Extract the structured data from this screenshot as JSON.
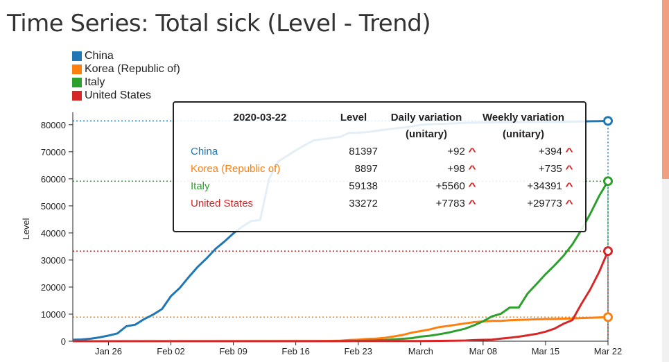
{
  "page": {
    "title": "Time Series: Total sick (Level - Trend)"
  },
  "chart_data": {
    "type": "line",
    "title": "Time Series: Total sick (Level - Trend)",
    "xlabel": "",
    "ylabel": "Level",
    "ylim": [
      0,
      82000
    ],
    "xlim": [
      "2020-01-22",
      "2020-03-22"
    ],
    "y_ticks": [
      0,
      10000,
      20000,
      30000,
      40000,
      50000,
      60000,
      70000,
      80000
    ],
    "x_ticks": [
      {
        "date": "2020-01-26",
        "label": "Jan 26"
      },
      {
        "date": "2020-02-02",
        "label": "Feb 02"
      },
      {
        "date": "2020-02-09",
        "label": "Feb 09"
      },
      {
        "date": "2020-02-16",
        "label": "Feb 16"
      },
      {
        "date": "2020-02-23",
        "label": "Feb 23"
      },
      {
        "date": "2020-03-01",
        "label": "March"
      },
      {
        "date": "2020-03-08",
        "label": "Mar 08"
      },
      {
        "date": "2020-03-15",
        "label": "Mar 15"
      },
      {
        "date": "2020-03-22",
        "label": "Mar 22"
      }
    ],
    "grid": false,
    "legend_position": "top-left",
    "series": [
      {
        "name": "China",
        "color": "#1f77b4",
        "points": [
          [
            "2020-01-22",
            548
          ],
          [
            "2020-01-23",
            643
          ],
          [
            "2020-01-24",
            920
          ],
          [
            "2020-01-25",
            1406
          ],
          [
            "2020-01-26",
            2075
          ],
          [
            "2020-01-27",
            2877
          ],
          [
            "2020-01-28",
            5509
          ],
          [
            "2020-01-29",
            6087
          ],
          [
            "2020-01-30",
            8141
          ],
          [
            "2020-01-31",
            9802
          ],
          [
            "2020-02-01",
            11891
          ],
          [
            "2020-02-02",
            16630
          ],
          [
            "2020-02-03",
            19716
          ],
          [
            "2020-02-04",
            23707
          ],
          [
            "2020-02-05",
            27440
          ],
          [
            "2020-02-06",
            30587
          ],
          [
            "2020-02-07",
            34110
          ],
          [
            "2020-02-08",
            36814
          ],
          [
            "2020-02-09",
            39829
          ],
          [
            "2020-02-10",
            42354
          ],
          [
            "2020-02-11",
            44386
          ],
          [
            "2020-02-12",
            44759
          ],
          [
            "2020-02-13",
            59895
          ],
          [
            "2020-02-14",
            66358
          ],
          [
            "2020-02-15",
            68413
          ],
          [
            "2020-02-16",
            70513
          ],
          [
            "2020-02-17",
            72434
          ],
          [
            "2020-02-18",
            74211
          ],
          [
            "2020-02-19",
            74619
          ],
          [
            "2020-02-20",
            75077
          ],
          [
            "2020-02-21",
            75550
          ],
          [
            "2020-02-22",
            77001
          ],
          [
            "2020-02-23",
            77022
          ],
          [
            "2020-02-24",
            77241
          ],
          [
            "2020-02-25",
            77754
          ],
          [
            "2020-02-26",
            78166
          ],
          [
            "2020-02-27",
            78600
          ],
          [
            "2020-02-28",
            78928
          ],
          [
            "2020-02-29",
            79356
          ],
          [
            "2020-03-01",
            79932
          ],
          [
            "2020-03-02",
            80136
          ],
          [
            "2020-03-03",
            80261
          ],
          [
            "2020-03-04",
            80386
          ],
          [
            "2020-03-05",
            80537
          ],
          [
            "2020-03-06",
            80690
          ],
          [
            "2020-03-07",
            80770
          ],
          [
            "2020-03-08",
            80823
          ],
          [
            "2020-03-09",
            80860
          ],
          [
            "2020-03-10",
            80887
          ],
          [
            "2020-03-11",
            80921
          ],
          [
            "2020-03-12",
            80932
          ],
          [
            "2020-03-13",
            80945
          ],
          [
            "2020-03-14",
            80977
          ],
          [
            "2020-03-15",
            81003
          ],
          [
            "2020-03-16",
            81033
          ],
          [
            "2020-03-17",
            81058
          ],
          [
            "2020-03-18",
            81102
          ],
          [
            "2020-03-19",
            81156
          ],
          [
            "2020-03-20",
            81250
          ],
          [
            "2020-03-21",
            81305
          ],
          [
            "2020-03-22",
            81397
          ]
        ]
      },
      {
        "name": "Korea (Republic of)",
        "color": "#ff7f0e",
        "points": [
          [
            "2020-01-22",
            1
          ],
          [
            "2020-02-15",
            28
          ],
          [
            "2020-02-18",
            31
          ],
          [
            "2020-02-19",
            51
          ],
          [
            "2020-02-20",
            104
          ],
          [
            "2020-02-21",
            204
          ],
          [
            "2020-02-22",
            433
          ],
          [
            "2020-02-23",
            602
          ],
          [
            "2020-02-24",
            833
          ],
          [
            "2020-02-25",
            977
          ],
          [
            "2020-02-26",
            1261
          ],
          [
            "2020-02-27",
            1766
          ],
          [
            "2020-02-28",
            2337
          ],
          [
            "2020-02-29",
            3150
          ],
          [
            "2020-03-01",
            3736
          ],
          [
            "2020-03-02",
            4335
          ],
          [
            "2020-03-03",
            5186
          ],
          [
            "2020-03-04",
            5621
          ],
          [
            "2020-03-05",
            6088
          ],
          [
            "2020-03-06",
            6593
          ],
          [
            "2020-03-07",
            7041
          ],
          [
            "2020-03-08",
            7314
          ],
          [
            "2020-03-09",
            7478
          ],
          [
            "2020-03-10",
            7513
          ],
          [
            "2020-03-11",
            7755
          ],
          [
            "2020-03-12",
            7869
          ],
          [
            "2020-03-13",
            7979
          ],
          [
            "2020-03-14",
            8086
          ],
          [
            "2020-03-15",
            8162
          ],
          [
            "2020-03-16",
            8236
          ],
          [
            "2020-03-17",
            8320
          ],
          [
            "2020-03-18",
            8413
          ],
          [
            "2020-03-19",
            8565
          ],
          [
            "2020-03-20",
            8652
          ],
          [
            "2020-03-21",
            8799
          ],
          [
            "2020-03-22",
            8897
          ]
        ]
      },
      {
        "name": "Italy",
        "color": "#2ca02c",
        "points": [
          [
            "2020-01-22",
            0
          ],
          [
            "2020-02-20",
            3
          ],
          [
            "2020-02-21",
            20
          ],
          [
            "2020-02-22",
            62
          ],
          [
            "2020-02-23",
            155
          ],
          [
            "2020-02-24",
            229
          ],
          [
            "2020-02-25",
            322
          ],
          [
            "2020-02-26",
            453
          ],
          [
            "2020-02-27",
            655
          ],
          [
            "2020-02-28",
            888
          ],
          [
            "2020-02-29",
            1128
          ],
          [
            "2020-03-01",
            1694
          ],
          [
            "2020-03-02",
            2036
          ],
          [
            "2020-03-03",
            2502
          ],
          [
            "2020-03-04",
            3089
          ],
          [
            "2020-03-05",
            3858
          ],
          [
            "2020-03-06",
            4636
          ],
          [
            "2020-03-07",
            5883
          ],
          [
            "2020-03-08",
            7375
          ],
          [
            "2020-03-09",
            9172
          ],
          [
            "2020-03-10",
            10149
          ],
          [
            "2020-03-11",
            12462
          ],
          [
            "2020-03-12",
            12462
          ],
          [
            "2020-03-13",
            17660
          ],
          [
            "2020-03-14",
            21157
          ],
          [
            "2020-03-15",
            24747
          ],
          [
            "2020-03-16",
            27980
          ],
          [
            "2020-03-17",
            31506
          ],
          [
            "2020-03-18",
            35713
          ],
          [
            "2020-03-19",
            41035
          ],
          [
            "2020-03-20",
            47021
          ],
          [
            "2020-03-21",
            53578
          ],
          [
            "2020-03-22",
            59138
          ]
        ]
      },
      {
        "name": "United States",
        "color": "#d62728",
        "points": [
          [
            "2020-01-22",
            1
          ],
          [
            "2020-02-29",
            68
          ],
          [
            "2020-03-01",
            74
          ],
          [
            "2020-03-02",
            98
          ],
          [
            "2020-03-03",
            118
          ],
          [
            "2020-03-04",
            149
          ],
          [
            "2020-03-05",
            217
          ],
          [
            "2020-03-06",
            262
          ],
          [
            "2020-03-07",
            402
          ],
          [
            "2020-03-08",
            518
          ],
          [
            "2020-03-09",
            583
          ],
          [
            "2020-03-10",
            959
          ],
          [
            "2020-03-11",
            1281
          ],
          [
            "2020-03-12",
            1663
          ],
          [
            "2020-03-13",
            2179
          ],
          [
            "2020-03-14",
            2727
          ],
          [
            "2020-03-15",
            3499
          ],
          [
            "2020-03-16",
            4632
          ],
          [
            "2020-03-17",
            6421
          ],
          [
            "2020-03-18",
            7783
          ],
          [
            "2020-03-19",
            13677
          ],
          [
            "2020-03-20",
            19100
          ],
          [
            "2020-03-21",
            25489
          ],
          [
            "2020-03-22",
            33272
          ]
        ]
      }
    ]
  },
  "tooltip": {
    "date": "2020-03-22",
    "headers": {
      "level": "Level",
      "daily": "Daily variation (unitary)",
      "weekly": "Weekly variation (unitary)"
    },
    "rows": [
      {
        "name": "China",
        "color": "#1f77b4",
        "level": "81397",
        "daily": "+92",
        "weekly": "+394"
      },
      {
        "name": "Korea (Republic of)",
        "color": "#ff7f0e",
        "level": "8897",
        "daily": "+98",
        "weekly": "+735"
      },
      {
        "name": "Italy",
        "color": "#2ca02c",
        "level": "59138",
        "daily": "+5560",
        "weekly": "+34391"
      },
      {
        "name": "United States",
        "color": "#d62728",
        "level": "33272",
        "daily": "+7783",
        "weekly": "+29773"
      }
    ],
    "trend_icon": "chevron-up-icon",
    "trend_color": "#d62728"
  }
}
